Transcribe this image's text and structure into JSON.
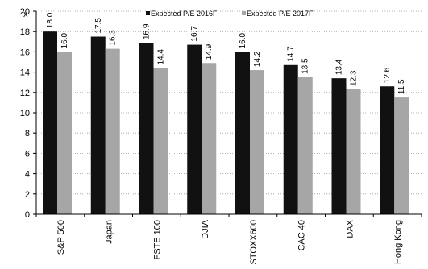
{
  "chart_data": {
    "type": "bar",
    "categories": [
      "S&P 500",
      "Japan",
      "FSTE 100",
      "DJIA",
      "STOXX600",
      "CAC 40",
      "DAX",
      "Hong Kong"
    ],
    "series": [
      {
        "name": "Expected P/E 2016F",
        "values": [
          18.0,
          17.5,
          16.9,
          16.7,
          16.0,
          14.7,
          13.4,
          12.6
        ],
        "color": "#111111"
      },
      {
        "name": "Expected P/E 2017F",
        "values": [
          16.0,
          16.3,
          14.4,
          14.9,
          14.2,
          13.5,
          12.3,
          11.5
        ],
        "color": "#a6a6a6"
      }
    ],
    "value_labels_series1": [
      "18.0",
      "17.5",
      "16.9",
      "16.7",
      "16.0",
      "14.7",
      "13.4",
      "12.6"
    ],
    "value_labels_series2": [
      "16.0",
      "16.3",
      "14.4",
      "14.9",
      "14.2",
      "13.5",
      "12.3",
      "11.5"
    ],
    "ylabel": "x",
    "ylim": [
      0,
      20
    ],
    "yticks": [
      0,
      2,
      4,
      6,
      8,
      10,
      12,
      14,
      16,
      18,
      20
    ],
    "grid": true,
    "grid_style": "dotted",
    "legend_position": "top-center"
  }
}
